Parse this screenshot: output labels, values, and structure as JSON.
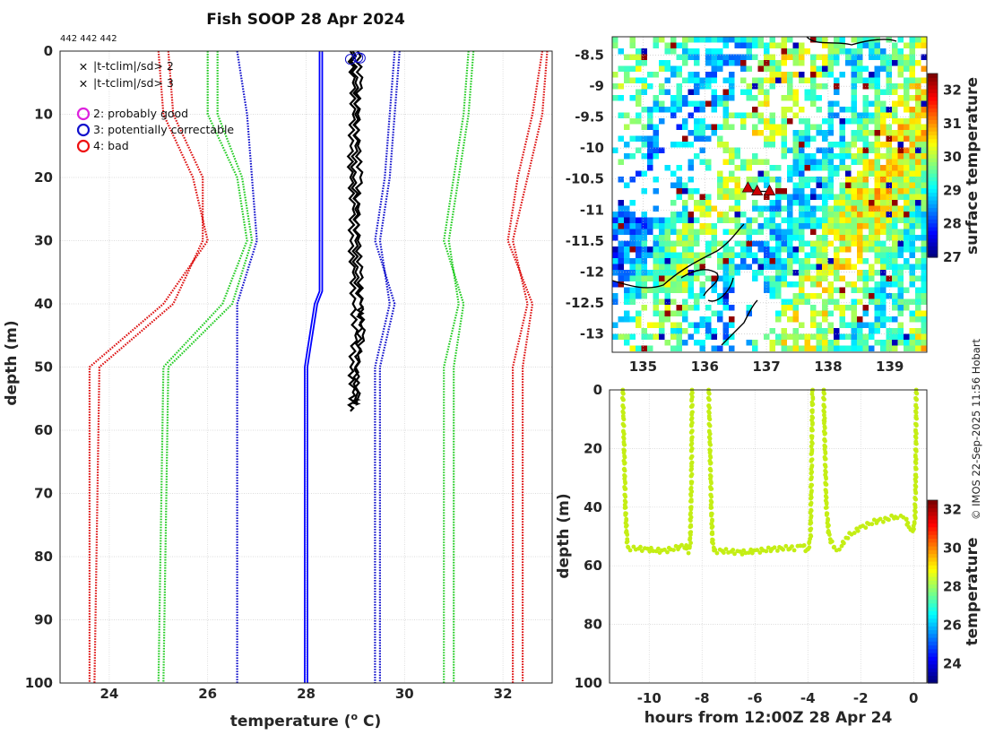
{
  "title": "Fish SOOP 28 Apr 2024",
  "ids_label": "442 442 442",
  "credit": "© IMOS 22-Sep-2025 11:56 Hobart",
  "colors": {
    "lim2": "#22cc22",
    "lim3": "#dd1111",
    "clim": "#1111cc",
    "blue_profile": "#0000ff",
    "profile": "#000000",
    "timeseries": "#c4ee14"
  },
  "chart_data": [
    {
      "name": "profile",
      "type": "line",
      "xlabel": "temperature (°C)",
      "xlabel_main": "temperature (",
      "xlabel_sup": "o",
      "xlabel_end": " C)",
      "ylabel": "depth (m)",
      "xlim": [
        23,
        33
      ],
      "ylim": [
        100,
        0
      ],
      "xticks": [
        24,
        26,
        28,
        30,
        32
      ],
      "yticks": [
        0,
        10,
        20,
        30,
        40,
        50,
        60,
        70,
        80,
        90,
        100
      ],
      "legend": {
        "markers": [
          {
            "symbol": "x",
            "color": "#22cc22",
            "label": "|t-tclim|/sd> 2"
          },
          {
            "symbol": "x",
            "color": "#dd1111",
            "label": "|t-tclim|/sd> 3"
          }
        ],
        "flags": [
          {
            "color": "#dd22dd",
            "label": "2: probably good"
          },
          {
            "color": "#1111cc",
            "label": "3: potentially correctable"
          },
          {
            "color": "#ee1111",
            "label": "4: bad"
          }
        ]
      },
      "depths": [
        0,
        10,
        20,
        30,
        40,
        50,
        100
      ],
      "limit_series": [
        {
          "name": "lower 3sd",
          "color": "#dd1111",
          "values": [
            [
              25.2,
              25.3,
              25.9,
              25.9,
              25.3,
              23.8,
              23.7
            ],
            [
              25.0,
              25.1,
              25.7,
              26.0,
              25.1,
              23.6,
              23.6
            ]
          ]
        },
        {
          "name": "lower 2sd",
          "color": "#22cc22",
          "values": [
            [
              26.2,
              26.2,
              26.7,
              26.9,
              26.5,
              25.2,
              25.1
            ],
            [
              26.0,
              26.0,
              26.6,
              26.8,
              26.3,
              25.1,
              25.0
            ]
          ]
        },
        {
          "name": "lower clim",
          "color": "#1111cc",
          "values": [
            [
              26.6,
              26.8,
              26.9,
              27.0,
              26.6,
              26.6,
              26.6
            ]
          ]
        },
        {
          "name": "upper clim",
          "color": "#1111cc",
          "values": [
            [
              29.8,
              29.7,
              29.6,
              29.4,
              29.8,
              29.5,
              29.5
            ],
            [
              29.9,
              29.8,
              29.7,
              29.5,
              29.7,
              29.4,
              29.4
            ]
          ]
        },
        {
          "name": "upper 2sd",
          "color": "#22cc22",
          "values": [
            [
              31.3,
              31.2,
              31.0,
              30.8,
              31.2,
              31.0,
              31.0
            ],
            [
              31.4,
              31.3,
              31.1,
              30.9,
              31.1,
              30.8,
              30.8
            ]
          ]
        },
        {
          "name": "upper 3sd",
          "color": "#dd1111",
          "values": [
            [
              32.8,
              32.6,
              32.3,
              32.1,
              32.6,
              32.4,
              32.4
            ],
            [
              32.9,
              32.8,
              32.5,
              32.2,
              32.5,
              32.2,
              32.2
            ]
          ]
        }
      ],
      "blue_profile": {
        "depths": [
          0,
          10,
          20,
          30,
          38,
          40,
          50,
          100
        ],
        "values": [
          28.3,
          28.3,
          28.3,
          28.3,
          28.3,
          28.2,
          28.0,
          28.0
        ]
      },
      "profiles": [
        {
          "depths": [
            0,
            5,
            10,
            15,
            20,
            25,
            30,
            35,
            40,
            45,
            50,
            54,
            57
          ],
          "values": [
            28.9,
            28.95,
            28.95,
            28.9,
            28.9,
            28.95,
            28.9,
            28.95,
            28.95,
            29.0,
            28.9,
            28.95,
            28.9
          ]
        },
        {
          "depths": [
            0,
            5,
            10,
            15,
            20,
            25,
            30,
            35,
            40,
            45,
            50,
            55
          ],
          "values": [
            29.05,
            29.1,
            29.0,
            29.05,
            29.1,
            29.0,
            29.05,
            29.1,
            29.1,
            29.15,
            29.0,
            29.05
          ]
        },
        {
          "depths": [
            0,
            5,
            10,
            15,
            20,
            25,
            30,
            35,
            40,
            43,
            48,
            55,
            56
          ],
          "values": [
            28.95,
            29.0,
            29.05,
            29.0,
            28.95,
            29.05,
            29.0,
            29.0,
            29.1,
            29.1,
            29.05,
            29.0,
            29.0
          ]
        }
      ],
      "flag_markers": [
        {
          "x": 28.9,
          "depth": 1.3,
          "color": "#1111cc"
        },
        {
          "x": 29.05,
          "depth": 1.0,
          "color": "#1111cc"
        },
        {
          "x": 29.1,
          "depth": 1.1,
          "color": "#1111cc"
        }
      ]
    },
    {
      "name": "sst_map",
      "type": "heatmap",
      "xlim": [
        134.5,
        139.6
      ],
      "ylim": [
        -13.3,
        -8.2
      ],
      "xticks": [
        135,
        136,
        137,
        138,
        139
      ],
      "yticks": [
        -8.5,
        -9,
        -9.5,
        -10,
        -10.5,
        -11,
        -11.5,
        -12,
        -12.5,
        -13
      ],
      "colorbar": {
        "label": "surface temperature",
        "range": [
          27,
          32.5
        ],
        "ticks": [
          27,
          28,
          29,
          30,
          31,
          32
        ]
      },
      "track": [
        [
          136.7,
          -10.65
        ],
        [
          136.85,
          -10.7
        ],
        [
          137.05,
          -10.7
        ]
      ]
    },
    {
      "name": "timeseries",
      "type": "scatter",
      "xlabel": "hours from 12:00Z 28 Apr 24",
      "ylabel": "depth (m)",
      "xlim": [
        -11.5,
        0.5
      ],
      "ylim": [
        100,
        0
      ],
      "xticks": [
        -10,
        -8,
        -6,
        -4,
        -2,
        0
      ],
      "yticks": [
        0,
        20,
        40,
        60,
        80,
        100
      ],
      "colorbar": {
        "label": "temperature",
        "range": [
          23,
          32.5
        ],
        "ticks": [
          24,
          26,
          28,
          30,
          32
        ]
      },
      "segments": [
        {
          "x": [
            -11.0,
            -10.95,
            -10.9,
            -10.85,
            -10.8,
            -10.5,
            -10.0,
            -9.5,
            -9.0,
            -8.6,
            -8.5,
            -8.45,
            -8.4,
            -8.38
          ],
          "depth": [
            0,
            20,
            40,
            50,
            54,
            54,
            54.5,
            55,
            54,
            53,
            55,
            52,
            30,
            0
          ]
        },
        {
          "x": [
            -7.75,
            -7.7,
            -7.65,
            -7.6,
            -7.5,
            -7.0,
            -6.5,
            -6.0,
            -5.5,
            -5.0,
            -4.5,
            -4.2,
            -4.0,
            -3.9,
            -3.85,
            -3.82
          ],
          "depth": [
            0,
            20,
            40,
            53,
            55,
            55,
            55.5,
            55,
            54.5,
            54,
            54,
            53,
            55,
            50,
            20,
            0
          ]
        },
        {
          "x": [
            -3.4,
            -3.38,
            -3.3,
            -3.2,
            -3.0,
            -2.8,
            -2.5,
            -2.0,
            -1.5,
            -1.0,
            -0.6,
            -0.3,
            -0.2,
            -0.1,
            0.0,
            0.05,
            0.08,
            0.1
          ],
          "depth": [
            0,
            10,
            40,
            50,
            54,
            54,
            50,
            47,
            45,
            44,
            43,
            44,
            46,
            48,
            47,
            45,
            30,
            0
          ]
        }
      ]
    }
  ]
}
